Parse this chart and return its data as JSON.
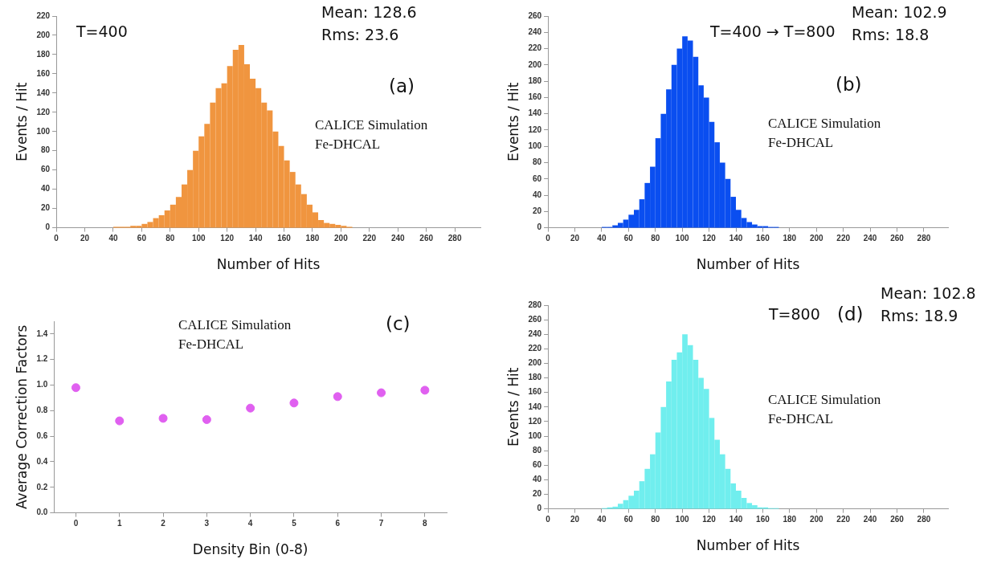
{
  "chart_data": [
    {
      "type": "histogram",
      "xlabel": "Number of Hits",
      "ylabel": "Events / Hit",
      "color": "#f0953f",
      "bins": [
        40,
        44,
        48,
        52,
        56,
        60,
        64,
        68,
        72,
        76,
        80,
        84,
        88,
        92,
        96,
        100,
        104,
        108,
        112,
        116,
        120,
        124,
        128,
        132,
        136,
        140,
        144,
        148,
        152,
        156,
        160,
        164,
        168,
        172,
        176,
        180,
        184,
        188,
        192,
        196,
        200,
        204,
        208
      ],
      "values": [
        1,
        1,
        1,
        2,
        2,
        4,
        6,
        10,
        13,
        18,
        24,
        32,
        45,
        60,
        80,
        95,
        108,
        130,
        145,
        150,
        168,
        185,
        190,
        170,
        155,
        145,
        130,
        122,
        100,
        85,
        70,
        58,
        45,
        35,
        24,
        16,
        8,
        5,
        4,
        3,
        2,
        1
      ],
      "xlim": [
        0,
        298
      ],
      "xticks": [
        0,
        20,
        40,
        60,
        80,
        100,
        120,
        140,
        160,
        180,
        200,
        220,
        240,
        260,
        280
      ],
      "ylim": [
        0,
        220
      ],
      "yticks": [
        0,
        20,
        40,
        60,
        80,
        100,
        120,
        140,
        160,
        180,
        200,
        220
      ],
      "grid": false,
      "legend": false,
      "annotations": [
        "T=400",
        "Mean: 128.6",
        "Rms: 23.6",
        "(a)",
        "CALICE Simulation",
        "Fe-DHCAL"
      ]
    },
    {
      "type": "histogram",
      "xlabel": "Number of Hits",
      "ylabel": "Events / Hit",
      "color": "#0a4ef0",
      "bins": [
        40,
        44,
        48,
        52,
        56,
        60,
        64,
        68,
        72,
        76,
        80,
        84,
        88,
        92,
        96,
        100,
        104,
        108,
        112,
        116,
        120,
        124,
        128,
        132,
        136,
        140,
        144,
        148,
        152,
        156,
        160,
        164,
        168,
        172
      ],
      "values": [
        1,
        1,
        3,
        6,
        10,
        16,
        22,
        35,
        55,
        75,
        110,
        140,
        170,
        200,
        220,
        235,
        230,
        210,
        175,
        160,
        130,
        105,
        80,
        60,
        38,
        22,
        12,
        7,
        4,
        2,
        2,
        1,
        1
      ],
      "xlim": [
        0,
        298
      ],
      "xticks": [
        0,
        20,
        40,
        60,
        80,
        100,
        120,
        140,
        160,
        180,
        200,
        220,
        240,
        260,
        280
      ],
      "ylim": [
        0,
        260
      ],
      "yticks": [
        0,
        20,
        40,
        60,
        80,
        100,
        120,
        140,
        160,
        180,
        200,
        220,
        240,
        260
      ],
      "grid": false,
      "legend": false,
      "annotations": [
        "T=400 → T=800",
        "Mean: 102.9",
        "Rms: 18.8",
        "(b)",
        "CALICE Simulation",
        "Fe-DHCAL"
      ]
    },
    {
      "type": "scatter",
      "xlabel": "Density Bin (0-8)",
      "ylabel": "Average Correction Factors",
      "color": "#e060f0",
      "marker": "circle",
      "categories": [
        "0",
        "1",
        "2",
        "3",
        "4",
        "5",
        "6",
        "7",
        "8"
      ],
      "values": [
        0.98,
        0.72,
        0.74,
        0.73,
        0.82,
        0.86,
        0.91,
        0.94,
        0.96
      ],
      "ylim": [
        0,
        1.5
      ],
      "yticks": [
        {
          "value": 0,
          "label": "0.0"
        },
        0.2,
        0.4,
        0.6,
        0.8,
        {
          "value": 1,
          "label": "1.0"
        },
        1.2,
        1.4
      ],
      "grid": false,
      "legend": false,
      "annotations": [
        "CALICE Simulation",
        "Fe-DHCAL",
        "(c)"
      ]
    },
    {
      "type": "histogram",
      "xlabel": "Number of Hits",
      "ylabel": "Events / Hit",
      "color": "#70eeee",
      "bins": [
        40,
        44,
        48,
        52,
        56,
        60,
        64,
        68,
        72,
        76,
        80,
        84,
        88,
        92,
        96,
        100,
        104,
        108,
        112,
        116,
        120,
        124,
        128,
        132,
        136,
        140,
        144,
        148,
        152,
        156,
        160,
        164,
        168,
        172
      ],
      "values": [
        1,
        2,
        3,
        7,
        12,
        18,
        25,
        38,
        55,
        75,
        105,
        140,
        175,
        205,
        215,
        240,
        225,
        205,
        180,
        165,
        125,
        95,
        75,
        55,
        35,
        25,
        15,
        8,
        5,
        2,
        2,
        1,
        1
      ],
      "xlim": [
        0,
        298
      ],
      "xticks": [
        0,
        20,
        40,
        60,
        80,
        100,
        120,
        140,
        160,
        180,
        200,
        220,
        240,
        260,
        280
      ],
      "ylim": [
        0,
        280
      ],
      "yticks": [
        0,
        20,
        40,
        60,
        80,
        100,
        120,
        140,
        160,
        180,
        200,
        220,
        240,
        260,
        280
      ],
      "grid": false,
      "legend": false,
      "annotations": [
        "T=800",
        "(d)",
        "Mean: 102.8",
        "Rms: 18.9",
        "CALICE Simulation",
        "Fe-DHCAL"
      ]
    }
  ]
}
